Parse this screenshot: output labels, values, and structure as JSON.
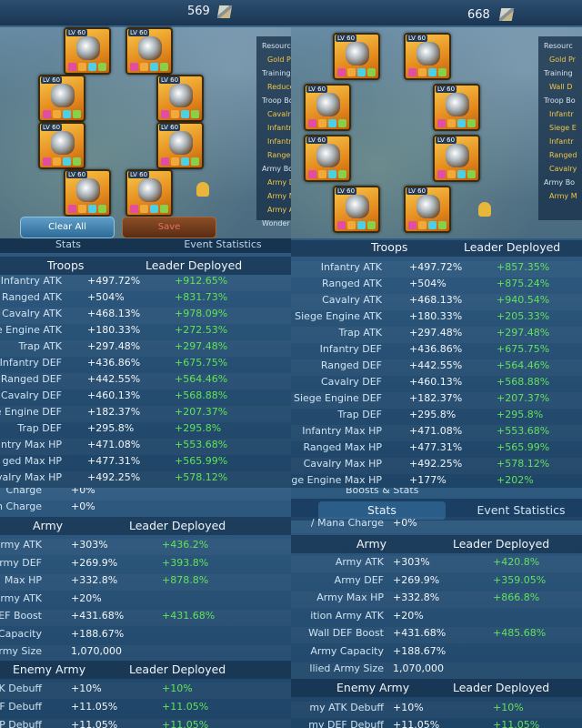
{
  "colors": {
    "gold": "#f1c64a",
    "bonus_green": "#63e25a",
    "panel_blue": "#1e4466"
  },
  "gear_left": {
    "power": "569",
    "sidebar": [
      "Resourc",
      "Gold P",
      "Training",
      "Reduce",
      "Troop Bo",
      "Cavalry",
      "Infantr",
      "Infantr",
      "Ranged",
      "Army Bo",
      "Army D",
      "Army M",
      "Army A",
      "Wonder"
    ],
    "clear_label": "Clear All",
    "save_label": "Save",
    "slot_level": "LV 60"
  },
  "gear_right": {
    "power": "668",
    "sidebar": [
      "Resourc",
      "Gold Pr",
      "Training",
      "Wall D",
      "Troop Bo",
      "Infantr",
      "Siege E",
      "Infantr",
      "Ranged",
      "Cavalry",
      "Army Bo",
      "Army M"
    ],
    "slot_level": "LV 60"
  },
  "stats_tl": {
    "tabs": [
      "Stats",
      "Event Statistics"
    ],
    "header": {
      "label": "Troops",
      "deployed": "Leader Deployed"
    },
    "rows": [
      {
        "label": "Infantry ATK",
        "v1": "+497.72%",
        "v2": "+912.65%"
      },
      {
        "label": "Ranged ATK",
        "v1": "+504%",
        "v2": "+831.73%"
      },
      {
        "label": "Cavalry ATK",
        "v1": "+468.13%",
        "v2": "+978.09%"
      },
      {
        "label": "e Engine ATK",
        "v1": "+180.33%",
        "v2": "+272.53%"
      },
      {
        "label": "Trap ATK",
        "v1": "+297.48%",
        "v2": "+297.48%"
      },
      {
        "label": "Infantry DEF",
        "v1": "+436.86%",
        "v2": "+675.75%"
      },
      {
        "label": "Ranged DEF",
        "v1": "+442.55%",
        "v2": "+564.46%"
      },
      {
        "label": "Cavalry DEF",
        "v1": "+460.13%",
        "v2": "+568.88%"
      },
      {
        "label": "e Engine DEF",
        "v1": "+182.37%",
        "v2": "+207.37%"
      },
      {
        "label": "Trap DEF",
        "v1": "+295.8%",
        "v2": "+295.8%"
      },
      {
        "label": "ntry Max HP",
        "v1": "+471.08%",
        "v2": "+553.68%"
      },
      {
        "label": "ged Max HP",
        "v1": "+477.31%",
        "v2": "+565.99%"
      },
      {
        "label": "valry Max HP",
        "v1": "+492.25%",
        "v2": "+578.12%"
      }
    ]
  },
  "stats_tr": {
    "header": {
      "label": "Troops",
      "deployed": "Leader Deployed"
    },
    "rows": [
      {
        "label": "Infantry ATK",
        "v1": "+497.72%",
        "v2": "+857.35%"
      },
      {
        "label": "Ranged ATK",
        "v1": "+504%",
        "v2": "+875.24%"
      },
      {
        "label": "Cavalry ATK",
        "v1": "+468.13%",
        "v2": "+940.54%"
      },
      {
        "label": "Siege Engine ATK",
        "v1": "+180.33%",
        "v2": "+205.33%"
      },
      {
        "label": "Trap ATK",
        "v1": "+297.48%",
        "v2": "+297.48%"
      },
      {
        "label": "Infantry DEF",
        "v1": "+436.86%",
        "v2": "+675.75%"
      },
      {
        "label": "Ranged DEF",
        "v1": "+442.55%",
        "v2": "+564.46%"
      },
      {
        "label": "Cavalry DEF",
        "v1": "+460.13%",
        "v2": "+568.88%"
      },
      {
        "label": "Siege Engine DEF",
        "v1": "+182.37%",
        "v2": "+207.37%"
      },
      {
        "label": "Trap DEF",
        "v1": "+295.8%",
        "v2": "+295.8%"
      },
      {
        "label": "Infantry Max HP",
        "v1": "+471.08%",
        "v2": "+553.68%"
      },
      {
        "label": "Ranged Max HP",
        "v1": "+477.31%",
        "v2": "+565.99%"
      },
      {
        "label": "Cavalry Max HP",
        "v1": "+492.25%",
        "v2": "+578.12%"
      },
      {
        "label": "ege Engine Max HP",
        "v1": "+177%",
        "v2": "+202%"
      }
    ]
  },
  "stats_bl": {
    "top_rows": [
      {
        "label": "Charge",
        "v1": "+0%"
      },
      {
        "label": "n Charge",
        "v1": "+0%"
      }
    ],
    "army_header": {
      "label": "Army",
      "deployed": "Leader Deployed"
    },
    "army_rows": [
      {
        "label": "rmy ATK",
        "v1": "+303%",
        "v2": "+436.2%"
      },
      {
        "label": "rmy DEF",
        "v1": "+269.9%",
        "v2": "+393.8%"
      },
      {
        "label": "Max HP",
        "v1": "+332.8%",
        "v2": "+878.8%"
      },
      {
        "label": "rmy ATK",
        "v1": "+20%",
        "v2": ""
      },
      {
        "label": "EF Boost",
        "v1": "+431.68%",
        "v2": "+431.68%"
      },
      {
        "label": "Capacity",
        "v1": "+188.67%",
        "v2": ""
      },
      {
        "label": "rmy Size",
        "v1": "1,070,000",
        "v2": ""
      }
    ],
    "enemy_header": {
      "label": "Enemy Army",
      "deployed": "Leader Deployed"
    },
    "enemy_rows": [
      {
        "label": "K Debuff",
        "v1": "+10%",
        "v2": "+10%"
      },
      {
        "label": "F Debuff",
        "v1": "+11.05%",
        "v2": "+11.05%"
      },
      {
        "label": "P Debuff",
        "v1": "+11.05%",
        "v2": "+11.05%"
      }
    ]
  },
  "stats_br": {
    "section_tag": "Boosts & Stats",
    "tabs": [
      "Stats",
      "Event Statistics"
    ],
    "top_rows": [
      {
        "label": "/ Mana Charge",
        "v1": "+0%"
      }
    ],
    "army_header": {
      "label": "Army",
      "deployed": "Leader Deployed"
    },
    "army_rows": [
      {
        "label": "Army ATK",
        "v1": "+303%",
        "v2": "+420.8%"
      },
      {
        "label": "Army DEF",
        "v1": "+269.9%",
        "v2": "+359.05%"
      },
      {
        "label": "Army Max HP",
        "v1": "+332.8%",
        "v2": "+866.8%"
      },
      {
        "label": "ition Army ATK",
        "v1": "+20%",
        "v2": ""
      },
      {
        "label": "Wall DEF Boost",
        "v1": "+431.68%",
        "v2": "+485.68%"
      },
      {
        "label": "Army Capacity",
        "v1": "+188.67%",
        "v2": ""
      },
      {
        "label": "llied Army Size",
        "v1": "1,070,000",
        "v2": ""
      }
    ],
    "enemy_header": {
      "label": "Enemy Army",
      "deployed": "Leader Deployed"
    },
    "enemy_rows": [
      {
        "label": "my ATK Debuff",
        "v1": "+10%",
        "v2": "+10%"
      },
      {
        "label": "my DEF Debuff",
        "v1": "+11.05%",
        "v2": "+11.05%"
      }
    ]
  }
}
